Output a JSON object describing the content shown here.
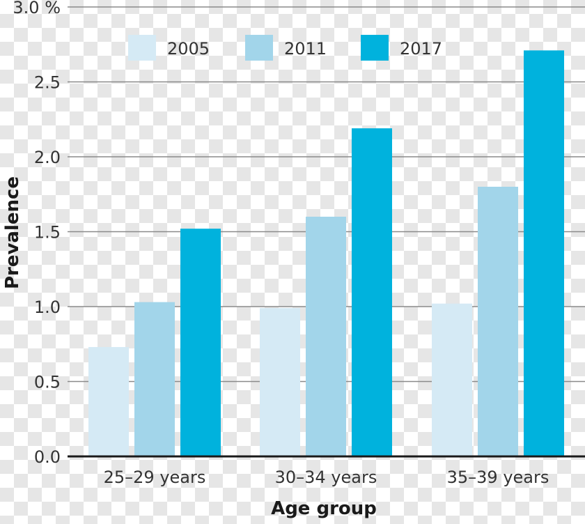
{
  "chart_data": {
    "type": "bar",
    "categories": [
      "25–29 years",
      "30–34 years",
      "35–39 years"
    ],
    "series": [
      {
        "name": "2005",
        "values": [
          0.73,
          0.99,
          1.02
        ],
        "color": "#d5eaf5"
      },
      {
        "name": "2011",
        "values": [
          1.03,
          1.6,
          1.8
        ],
        "color": "#a2d5ea"
      },
      {
        "name": "2017",
        "values": [
          1.52,
          2.19,
          2.71
        ],
        "color": "#00b2dd"
      }
    ],
    "title": "",
    "xlabel": "Age group",
    "ylabel": "Prevalence",
    "ylim": [
      0,
      3.0
    ],
    "yticks": [
      "0.0",
      "0.5",
      "1.0",
      "1.5",
      "2.0",
      "2.5",
      "3.0 %"
    ],
    "grid": true,
    "legend_position": "top"
  }
}
